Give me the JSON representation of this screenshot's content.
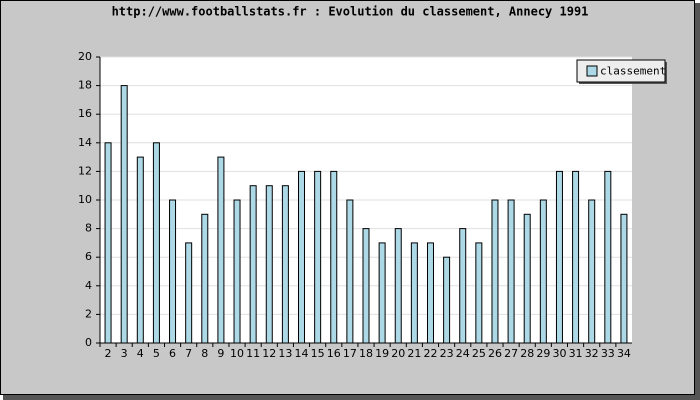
{
  "chart_data": {
    "type": "bar",
    "title": "http://www.footballstats.fr : Evolution du classement, Annecy 1991",
    "categories": [
      "2",
      "3",
      "4",
      "5",
      "6",
      "7",
      "8",
      "9",
      "10",
      "11",
      "12",
      "13",
      "14",
      "15",
      "16",
      "17",
      "18",
      "19",
      "20",
      "21",
      "22",
      "23",
      "24",
      "25",
      "26",
      "27",
      "28",
      "29",
      "30",
      "31",
      "32",
      "33",
      "34"
    ],
    "series": [
      {
        "name": "classement",
        "color": "#add8e6",
        "values": [
          14,
          18,
          13,
          14,
          10,
          7,
          9,
          13,
          10,
          11,
          11,
          11,
          12,
          12,
          12,
          10,
          8,
          7,
          8,
          7,
          7,
          6,
          8,
          7,
          10,
          10,
          9,
          10,
          12,
          12,
          10,
          12,
          9
        ]
      }
    ],
    "ylim": [
      0,
      20
    ],
    "yticks": [
      0,
      2,
      4,
      6,
      8,
      10,
      12,
      14,
      16,
      18,
      20
    ],
    "grid": true,
    "legend": "top-right"
  }
}
